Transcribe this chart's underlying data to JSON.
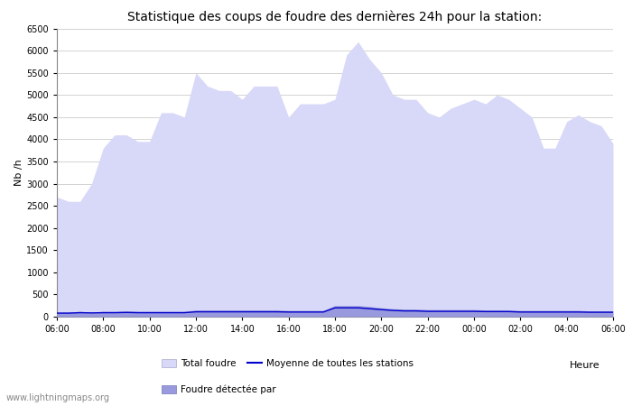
{
  "title": "Statistique des coups de foudre des dernières 24h pour la station:",
  "ylabel": "Nb /h",
  "xlabel": "Heure",
  "watermark": "www.lightningmaps.org",
  "ylim": [
    0,
    6500
  ],
  "yticks": [
    0,
    500,
    1000,
    1500,
    2000,
    2500,
    3000,
    3500,
    4000,
    4500,
    5000,
    5500,
    6000,
    6500
  ],
  "xtick_labels": [
    "06:00",
    "08:00",
    "10:00",
    "12:00",
    "14:00",
    "16:00",
    "18:00",
    "20:00",
    "22:00",
    "00:00",
    "02:00",
    "04:00",
    "06:00"
  ],
  "fill_color_total": "#d8d8f8",
  "fill_color_detected": "#9999dd",
  "line_color": "#0000cc",
  "bg_color": "#ffffff",
  "grid_color": "#cccccc",
  "legend_total": "Total foudre",
  "legend_detected": "Foudre détectée par",
  "legend_moyenne": "Moyenne de toutes les stations",
  "x_tick_positions": [
    6,
    8,
    10,
    12,
    14,
    16,
    18,
    20,
    22,
    24,
    26,
    28,
    30
  ],
  "hours": [
    6.0,
    6.5,
    7.0,
    7.5,
    8.0,
    8.5,
    9.0,
    9.5,
    10.0,
    10.5,
    11.0,
    11.5,
    12.0,
    12.5,
    13.0,
    13.5,
    14.0,
    14.5,
    15.0,
    15.5,
    16.0,
    16.5,
    17.0,
    17.5,
    18.0,
    18.5,
    19.0,
    19.5,
    20.0,
    20.5,
    21.0,
    21.5,
    22.0,
    22.5,
    23.0,
    23.5,
    24.0,
    24.5,
    25.0,
    25.5,
    26.0,
    26.5,
    27.0,
    27.5,
    28.0,
    28.5,
    29.0,
    29.5,
    30.0
  ],
  "total_foudre": [
    2700,
    2600,
    2600,
    3000,
    3800,
    4100,
    4100,
    3950,
    3950,
    4600,
    4600,
    4500,
    5500,
    5200,
    5100,
    5100,
    4900,
    5200,
    5200,
    5200,
    4500,
    4800,
    4800,
    4800,
    4900,
    5900,
    6200,
    5800,
    5500,
    5000,
    4900,
    4900,
    4600,
    4500,
    4700,
    4800,
    4900,
    4800,
    5000,
    4900,
    4700,
    4500,
    3800,
    3800,
    4400,
    4550,
    4400,
    4300,
    3900
  ],
  "detected": [
    100,
    100,
    120,
    100,
    120,
    120,
    130,
    120,
    120,
    120,
    120,
    120,
    150,
    150,
    150,
    150,
    150,
    150,
    150,
    150,
    140,
    140,
    140,
    140,
    250,
    250,
    250,
    230,
    200,
    180,
    170,
    170,
    160,
    160,
    160,
    160,
    160,
    150,
    150,
    150,
    140,
    140,
    140,
    140,
    140,
    140,
    130,
    130,
    130
  ],
  "moyenne": [
    80,
    80,
    90,
    85,
    90,
    90,
    95,
    90,
    90,
    90,
    90,
    90,
    110,
    110,
    110,
    110,
    110,
    110,
    110,
    110,
    105,
    105,
    105,
    105,
    200,
    200,
    200,
    180,
    160,
    140,
    130,
    130,
    120,
    120,
    120,
    120,
    120,
    115,
    115,
    115,
    105,
    105,
    105,
    105,
    105,
    105,
    100,
    100,
    100
  ]
}
